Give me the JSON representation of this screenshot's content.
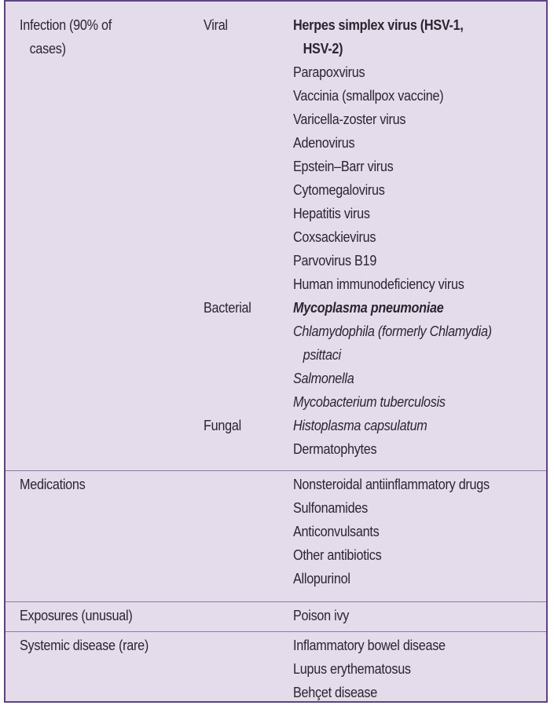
{
  "sections": {
    "infection": {
      "category_line1": "Infection (90% of",
      "category_line2": "cases)",
      "viral": {
        "label": "Viral",
        "items": [
          "Herpes simplex virus (HSV-1,",
          "HSV-2)",
          "Parapoxvirus",
          "Vaccinia (smallpox vaccine)",
          "Varicella-zoster virus",
          "Adenovirus",
          "Epstein–Barr virus",
          "Cytomegalovirus",
          "Hepatitis virus",
          "Coxsackievirus",
          "Parvovirus B19",
          "Human immunodeficiency virus"
        ]
      },
      "bacterial": {
        "label": "Bacterial",
        "items": [
          "Mycoplasma pneumoniae",
          "Chlamydophila (formerly Chlamydia)",
          "psittaci",
          "Salmonella",
          "Mycobacterium tuberculosis"
        ]
      },
      "fungal": {
        "label": "Fungal",
        "items": [
          "Histoplasma capsulatum",
          "Dermatophytes"
        ]
      }
    },
    "medications": {
      "category": "Medications",
      "items": [
        "Nonsteroidal antiinflammatory drugs",
        "Sulfonamides",
        "Anticonvulsants",
        "Other antibiotics",
        "Allopurinol"
      ]
    },
    "exposures": {
      "category": "Exposures (unusual)",
      "items": [
        "Poison ivy"
      ]
    },
    "systemic": {
      "category": "Systemic disease (rare)",
      "items": [
        "Inflammatory bowel disease",
        "Lupus erythematosus",
        "Behçet disease"
      ]
    }
  },
  "colors": {
    "background": "#e4dbeb",
    "border": "#5c4482",
    "divider": "#8c7aa3",
    "text": "#2b2530"
  }
}
